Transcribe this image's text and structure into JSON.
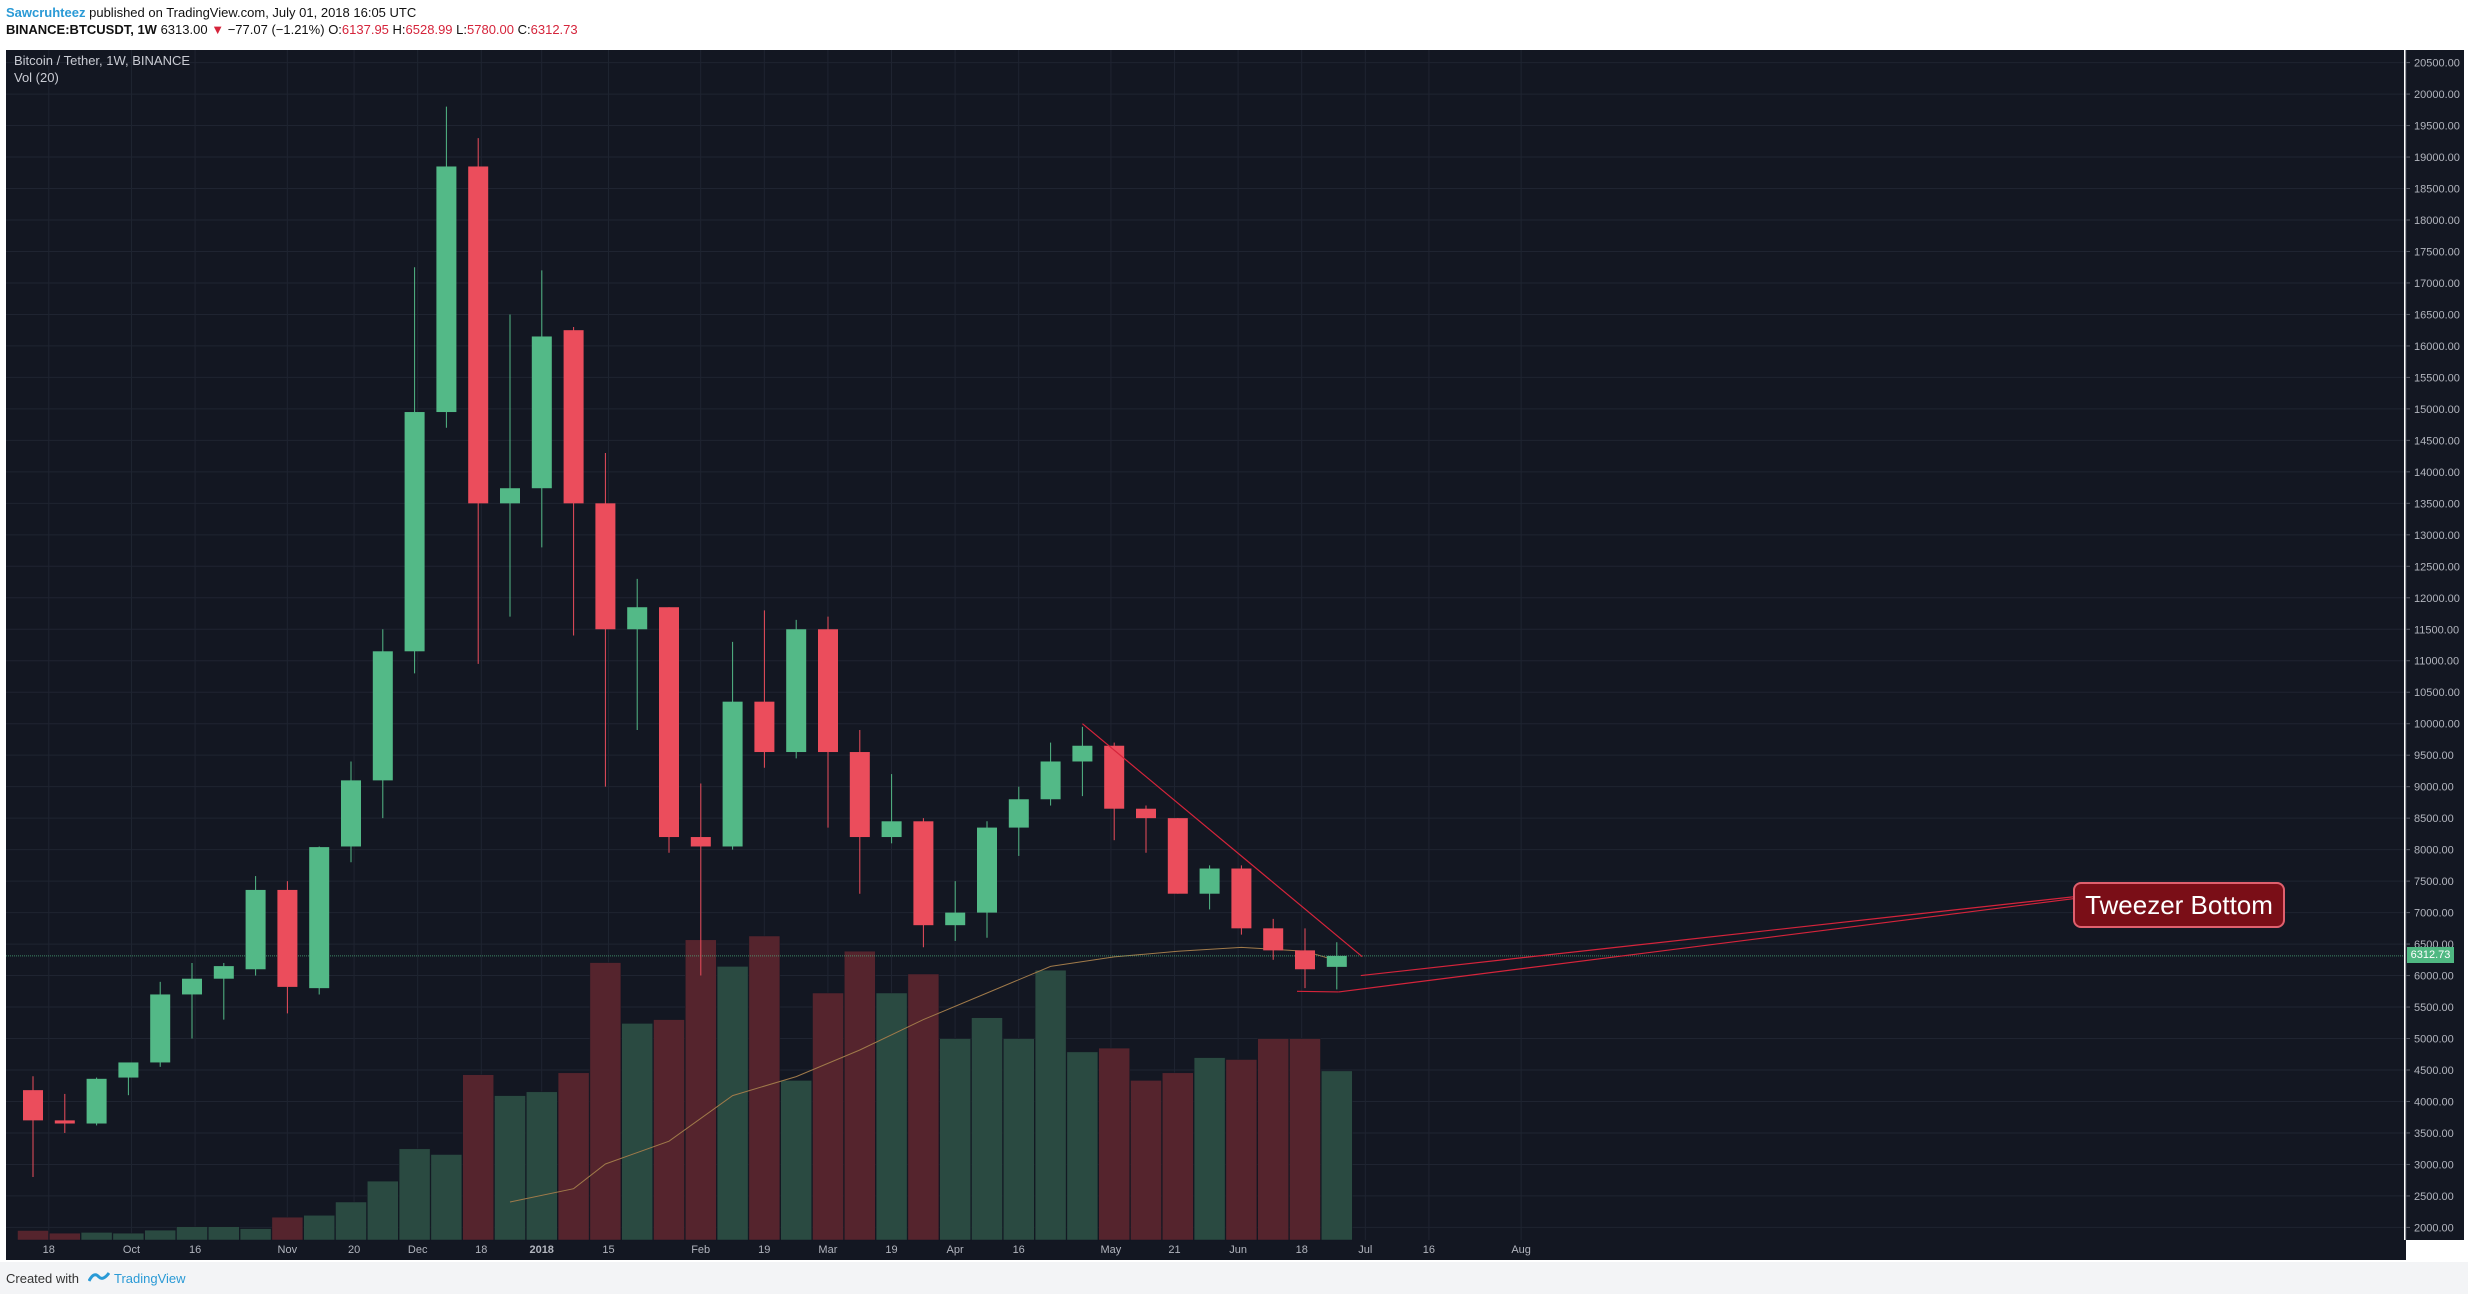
{
  "header": {
    "author": "Sawcruhteez",
    "published_text": "published on TradingView.com, July 01, 2018 16:05 UTC",
    "symbol": "BINANCE:BTCUSDT, 1W",
    "last_price": "6313.00",
    "change_arrow": "▼",
    "change": "−77.07 (−1.21%)",
    "o_label": "O:",
    "o_value": "6137.95",
    "h_label": "H:",
    "h_value": "6528.99",
    "l_label": "L:",
    "l_value": "5780.00",
    "c_label": "C:",
    "c_value": "6312.73"
  },
  "legend": {
    "pair": "Bitcoin / Tether, 1W, BINANCE",
    "volume": "Vol (20)"
  },
  "annotation": {
    "label": "Tweezer Bottom"
  },
  "price_tag": "6312.73",
  "footer": {
    "created_with": "Created with",
    "brand": "TradingView"
  },
  "colors": {
    "background": "#131722",
    "up": "#53b987",
    "down": "#eb4d5c",
    "volume_up": "#2a4a41",
    "volume_down": "#55242d",
    "trendline": "#d5243b",
    "volume_ma": "#a07a4a"
  },
  "chart_data": {
    "type": "candlestick",
    "price_axis": {
      "ylim": [
        1800,
        20700
      ],
      "ticks": [
        2000,
        2500,
        3000,
        3500,
        4000,
        4500,
        5000,
        5500,
        6000,
        6500,
        7000,
        7500,
        8000,
        8500,
        9000,
        9500,
        10000,
        10500,
        11000,
        11500,
        12000,
        12500,
        13000,
        13500,
        14000,
        14500,
        15000,
        15500,
        16000,
        16500,
        17000,
        17500,
        18000,
        18500,
        19000,
        19500,
        20000,
        20500
      ]
    },
    "time_axis": {
      "labels": [
        "18",
        "Oct",
        "16",
        "Nov",
        "20",
        "Dec",
        "18",
        "2018",
        "15",
        "Feb",
        "19",
        "Mar",
        "19",
        "Apr",
        "16",
        "May",
        "21",
        "Jun",
        "18",
        "Jul",
        "16",
        "Aug"
      ],
      "label_weeks": [
        1,
        3.6,
        5.6,
        8.5,
        10.6,
        12.6,
        14.6,
        16.5,
        18.6,
        21.5,
        23.5,
        25.5,
        27.5,
        29.5,
        31.5,
        34.4,
        36.4,
        38.4,
        40.4,
        42.4,
        44.4,
        47.3
      ]
    },
    "candles": [
      {
        "week": 0,
        "o": 4180,
        "h": 4400,
        "l": 2800,
        "c": 3700
      },
      {
        "week": 1,
        "o": 3700,
        "h": 4120,
        "l": 3500,
        "c": 3650
      },
      {
        "week": 2,
        "o": 3650,
        "h": 4380,
        "l": 3620,
        "c": 4360
      },
      {
        "week": 3,
        "o": 4380,
        "h": 4600,
        "l": 4100,
        "c": 4620
      },
      {
        "week": 4,
        "o": 4620,
        "h": 5900,
        "l": 4550,
        "c": 5700
      },
      {
        "week": 5,
        "o": 5700,
        "h": 6200,
        "l": 5000,
        "c": 5950
      },
      {
        "week": 6,
        "o": 5950,
        "h": 6200,
        "l": 5300,
        "c": 6150
      },
      {
        "week": 7,
        "o": 6100,
        "h": 7580,
        "l": 6000,
        "c": 7360
      },
      {
        "week": 8,
        "o": 7360,
        "h": 7500,
        "l": 5400,
        "c": 5820
      },
      {
        "week": 9,
        "o": 5800,
        "h": 8050,
        "l": 5700,
        "c": 8040
      },
      {
        "week": 10,
        "o": 8050,
        "h": 9400,
        "l": 7800,
        "c": 9100
      },
      {
        "week": 11,
        "o": 9100,
        "h": 11500,
        "l": 8500,
        "c": 11150
      },
      {
        "week": 12,
        "o": 11150,
        "h": 17250,
        "l": 10800,
        "c": 14950
      },
      {
        "week": 13,
        "o": 14950,
        "h": 19800,
        "l": 14700,
        "c": 18850
      },
      {
        "week": 14,
        "o": 18850,
        "h": 19300,
        "l": 10950,
        "c": 13500
      },
      {
        "week": 15,
        "o": 13500,
        "h": 16500,
        "l": 11700,
        "c": 13740
      },
      {
        "week": 16,
        "o": 13740,
        "h": 17200,
        "l": 12800,
        "c": 16150
      },
      {
        "week": 17,
        "o": 16250,
        "h": 16300,
        "l": 11400,
        "c": 13500
      },
      {
        "week": 18,
        "o": 13500,
        "h": 14300,
        "l": 9000,
        "c": 11500
      },
      {
        "week": 19,
        "o": 11500,
        "h": 12300,
        "l": 9900,
        "c": 11850
      },
      {
        "week": 20,
        "o": 11850,
        "h": 11850,
        "l": 7950,
        "c": 8200
      },
      {
        "week": 21,
        "o": 8200,
        "h": 9050,
        "l": 6000,
        "c": 8050
      },
      {
        "week": 22,
        "o": 8050,
        "h": 11300,
        "l": 8000,
        "c": 10350
      },
      {
        "week": 23,
        "o": 10350,
        "h": 11800,
        "l": 9300,
        "c": 9550
      },
      {
        "week": 24,
        "o": 9550,
        "h": 11650,
        "l": 9450,
        "c": 11500
      },
      {
        "week": 25,
        "o": 11500,
        "h": 11700,
        "l": 8350,
        "c": 9550
      },
      {
        "week": 26,
        "o": 9550,
        "h": 9900,
        "l": 7300,
        "c": 8200
      },
      {
        "week": 27,
        "o": 8200,
        "h": 9200,
        "l": 8100,
        "c": 8450
      },
      {
        "week": 28,
        "o": 8450,
        "h": 8500,
        "l": 6450,
        "c": 6800
      },
      {
        "week": 29,
        "o": 6800,
        "h": 7500,
        "l": 6550,
        "c": 7000
      },
      {
        "week": 30,
        "o": 7000,
        "h": 8450,
        "l": 6600,
        "c": 8350
      },
      {
        "week": 31,
        "o": 8350,
        "h": 9000,
        "l": 7900,
        "c": 8800
      },
      {
        "week": 32,
        "o": 8800,
        "h": 9700,
        "l": 8700,
        "c": 9400
      },
      {
        "week": 33,
        "o": 9400,
        "h": 9950,
        "l": 8850,
        "c": 9650
      },
      {
        "week": 34,
        "o": 9650,
        "h": 9700,
        "l": 8150,
        "c": 8650
      },
      {
        "week": 35,
        "o": 8650,
        "h": 8700,
        "l": 7950,
        "c": 8500
      },
      {
        "week": 36,
        "o": 8500,
        "h": 8500,
        "l": 7300,
        "c": 7300
      },
      {
        "week": 37,
        "o": 7300,
        "h": 7750,
        "l": 7050,
        "c": 7700
      },
      {
        "week": 38,
        "o": 7700,
        "h": 7750,
        "l": 6650,
        "c": 6750
      },
      {
        "week": 39,
        "o": 6750,
        "h": 6900,
        "l": 6250,
        "c": 6400
      },
      {
        "week": 40,
        "o": 6400,
        "h": 6750,
        "l": 5800,
        "c": 6100
      },
      {
        "week": 41,
        "o": 6137.95,
        "h": 6528.99,
        "l": 5780,
        "c": 6312.73
      }
    ],
    "volume": [
      {
        "week": 0,
        "value": 0.25,
        "dir": "down"
      },
      {
        "week": 1,
        "value": 0.18,
        "dir": "down"
      },
      {
        "week": 2,
        "value": 0.2,
        "dir": "up"
      },
      {
        "week": 3,
        "value": 0.18,
        "dir": "up"
      },
      {
        "week": 4,
        "value": 0.26,
        "dir": "up"
      },
      {
        "week": 5,
        "value": 0.35,
        "dir": "up"
      },
      {
        "week": 6,
        "value": 0.35,
        "dir": "up"
      },
      {
        "week": 7,
        "value": 0.3,
        "dir": "up"
      },
      {
        "week": 8,
        "value": 0.6,
        "dir": "down"
      },
      {
        "week": 9,
        "value": 0.65,
        "dir": "up"
      },
      {
        "week": 10,
        "value": 1.0,
        "dir": "up"
      },
      {
        "week": 11,
        "value": 1.55,
        "dir": "up"
      },
      {
        "week": 12,
        "value": 2.4,
        "dir": "up"
      },
      {
        "week": 13,
        "value": 2.25,
        "dir": "up"
      },
      {
        "week": 14,
        "value": 4.35,
        "dir": "down"
      },
      {
        "week": 15,
        "value": 3.8,
        "dir": "up"
      },
      {
        "week": 16,
        "value": 3.9,
        "dir": "up"
      },
      {
        "week": 17,
        "value": 4.4,
        "dir": "down"
      },
      {
        "week": 18,
        "value": 7.3,
        "dir": "down"
      },
      {
        "week": 19,
        "value": 5.7,
        "dir": "up"
      },
      {
        "week": 20,
        "value": 5.8,
        "dir": "down"
      },
      {
        "week": 21,
        "value": 7.9,
        "dir": "down"
      },
      {
        "week": 22,
        "value": 7.2,
        "dir": "up"
      },
      {
        "week": 23,
        "value": 8.0,
        "dir": "down"
      },
      {
        "week": 24,
        "value": 4.2,
        "dir": "up"
      },
      {
        "week": 25,
        "value": 6.5,
        "dir": "down"
      },
      {
        "week": 26,
        "value": 7.6,
        "dir": "down"
      },
      {
        "week": 27,
        "value": 6.5,
        "dir": "up"
      },
      {
        "week": 28,
        "value": 7.0,
        "dir": "down"
      },
      {
        "week": 29,
        "value": 5.3,
        "dir": "up"
      },
      {
        "week": 30,
        "value": 5.85,
        "dir": "up"
      },
      {
        "week": 31,
        "value": 5.3,
        "dir": "up"
      },
      {
        "week": 32,
        "value": 7.1,
        "dir": "up"
      },
      {
        "week": 33,
        "value": 4.95,
        "dir": "up"
      },
      {
        "week": 34,
        "value": 5.05,
        "dir": "down"
      },
      {
        "week": 35,
        "value": 4.2,
        "dir": "down"
      },
      {
        "week": 36,
        "value": 4.4,
        "dir": "down"
      },
      {
        "week": 37,
        "value": 4.8,
        "dir": "up"
      },
      {
        "week": 38,
        "value": 4.75,
        "dir": "down"
      },
      {
        "week": 39,
        "value": 5.3,
        "dir": "down"
      },
      {
        "week": 40,
        "value": 5.3,
        "dir": "down"
      },
      {
        "week": 41,
        "value": 4.45,
        "dir": "up"
      }
    ],
    "volume_ma": [
      {
        "week": 15,
        "value": 1.0
      },
      {
        "week": 17,
        "value": 1.35
      },
      {
        "week": 18,
        "value": 2.0
      },
      {
        "week": 20,
        "value": 2.6
      },
      {
        "week": 22,
        "value": 3.8
      },
      {
        "week": 24,
        "value": 4.3
      },
      {
        "week": 26,
        "value": 5.0
      },
      {
        "week": 28,
        "value": 5.8
      },
      {
        "week": 30,
        "value": 6.5
      },
      {
        "week": 32,
        "value": 7.2
      },
      {
        "week": 34,
        "value": 7.45
      },
      {
        "week": 36,
        "value": 7.6
      },
      {
        "week": 38,
        "value": 7.7
      },
      {
        "week": 40,
        "value": 7.6
      },
      {
        "week": 41,
        "value": 7.35
      }
    ],
    "trendline": [
      {
        "week": 33,
        "price": 10000
      },
      {
        "week": 41.8,
        "price": 6300
      }
    ],
    "tweezer_marker": [
      {
        "week": 40,
        "price": 5750
      },
      {
        "week": 41,
        "price": 5740
      }
    ],
    "last_price_line": 6312.73
  }
}
